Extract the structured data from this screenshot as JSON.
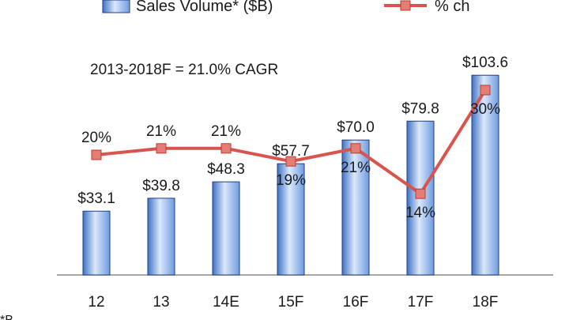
{
  "chart_data": {
    "type": "bar",
    "categories": [
      "12",
      "13",
      "14E",
      "15F",
      "16F",
      "17F",
      "18F"
    ],
    "series": [
      {
        "name": "Sales Volume* ($B)",
        "type": "bar",
        "values": [
          33.1,
          39.8,
          48.3,
          57.7,
          70.0,
          79.8,
          103.6
        ],
        "labels": [
          "$33.1",
          "$39.8",
          "$48.3",
          "$57.7",
          "$70.0",
          "$79.8",
          "$103.6"
        ],
        "color": "#5b8fd6"
      },
      {
        "name": "% ch",
        "type": "line",
        "values": [
          20,
          21,
          21,
          19,
          21,
          14,
          30
        ],
        "labels": [
          "20%",
          "21%",
          "21%",
          "19%",
          "21%",
          "14%",
          "30%"
        ],
        "color": "#d9534f"
      }
    ],
    "annotation": "2013-2018F = 21.0% CAGR",
    "footnote": "*B",
    "ylim_bar": [
      0,
      110
    ],
    "ylim_pct": [
      0,
      40
    ],
    "legend": "top"
  }
}
